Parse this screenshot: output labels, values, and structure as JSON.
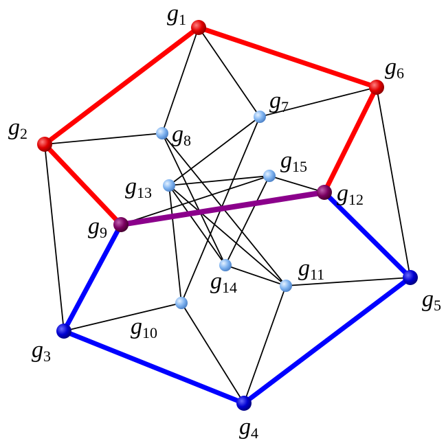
{
  "colors": {
    "red": "#ff0000",
    "blue": "#0000ff",
    "purple": "#8b008b",
    "thin": "#000000",
    "light_node": "#7fb3f0",
    "red_node": "#e00000",
    "blue_node": "#0000d0",
    "purple_node": "#7a0060"
  },
  "nodes": [
    {
      "id": "g1",
      "letter": "g",
      "sub": "1",
      "kind": "red"
    },
    {
      "id": "g2",
      "letter": "g",
      "sub": "2",
      "kind": "red"
    },
    {
      "id": "g3",
      "letter": "g",
      "sub": "3",
      "kind": "blue"
    },
    {
      "id": "g4",
      "letter": "g",
      "sub": "4",
      "kind": "blue"
    },
    {
      "id": "g5",
      "letter": "g",
      "sub": "5",
      "kind": "blue"
    },
    {
      "id": "g6",
      "letter": "g",
      "sub": "6",
      "kind": "red"
    },
    {
      "id": "g7",
      "letter": "g",
      "sub": "7",
      "kind": "light"
    },
    {
      "id": "g8",
      "letter": "g",
      "sub": "8",
      "kind": "light"
    },
    {
      "id": "g9",
      "letter": "g",
      "sub": "9",
      "kind": "purple"
    },
    {
      "id": "g10",
      "letter": "g",
      "sub": "10",
      "kind": "light"
    },
    {
      "id": "g11",
      "letter": "g",
      "sub": "11",
      "kind": "light"
    },
    {
      "id": "g12",
      "letter": "g",
      "sub": "12",
      "kind": "purple"
    },
    {
      "id": "g13",
      "letter": "g",
      "sub": "13",
      "kind": "light"
    },
    {
      "id": "g14",
      "letter": "g",
      "sub": "14",
      "kind": "light"
    },
    {
      "id": "g15",
      "letter": "g",
      "sub": "15",
      "kind": "light"
    }
  ],
  "edges": [
    {
      "from": "g1",
      "to": "g6",
      "style": "red"
    },
    {
      "from": "g1",
      "to": "g2",
      "style": "red"
    },
    {
      "from": "g2",
      "to": "g9",
      "style": "red"
    },
    {
      "from": "g6",
      "to": "g12",
      "style": "red"
    },
    {
      "from": "g9",
      "to": "g12",
      "style": "purple"
    },
    {
      "from": "g9",
      "to": "g3",
      "style": "blue"
    },
    {
      "from": "g3",
      "to": "g4",
      "style": "blue"
    },
    {
      "from": "g4",
      "to": "g5",
      "style": "blue"
    },
    {
      "from": "g5",
      "to": "g12",
      "style": "blue"
    },
    {
      "from": "g1",
      "to": "g8",
      "style": "thin"
    },
    {
      "from": "g1",
      "to": "g7",
      "style": "thin"
    },
    {
      "from": "g2",
      "to": "g8",
      "style": "thin"
    },
    {
      "from": "g2",
      "to": "g3",
      "style": "thin"
    },
    {
      "from": "g6",
      "to": "g7",
      "style": "thin"
    },
    {
      "from": "g6",
      "to": "g5",
      "style": "thin"
    },
    {
      "from": "g7",
      "to": "g13",
      "style": "thin"
    },
    {
      "from": "g7",
      "to": "g10",
      "style": "thin"
    },
    {
      "from": "g8",
      "to": "g14",
      "style": "thin"
    },
    {
      "from": "g8",
      "to": "g11",
      "style": "thin"
    },
    {
      "from": "g13",
      "to": "g15",
      "style": "thin"
    },
    {
      "from": "g13",
      "to": "g14",
      "style": "thin"
    },
    {
      "from": "g13",
      "to": "g11",
      "style": "thin"
    },
    {
      "from": "g13",
      "to": "g10",
      "style": "thin"
    },
    {
      "from": "g9",
      "to": "g15",
      "style": "thin"
    },
    {
      "from": "g15",
      "to": "g12",
      "style": "thin"
    },
    {
      "from": "g15",
      "to": "g14",
      "style": "thin"
    },
    {
      "from": "g14",
      "to": "g11",
      "style": "thin"
    },
    {
      "from": "g11",
      "to": "g5",
      "style": "thin"
    },
    {
      "from": "g11",
      "to": "g4",
      "style": "thin"
    },
    {
      "from": "g10",
      "to": "g3",
      "style": "thin"
    },
    {
      "from": "g10",
      "to": "g4",
      "style": "thin"
    }
  ]
}
